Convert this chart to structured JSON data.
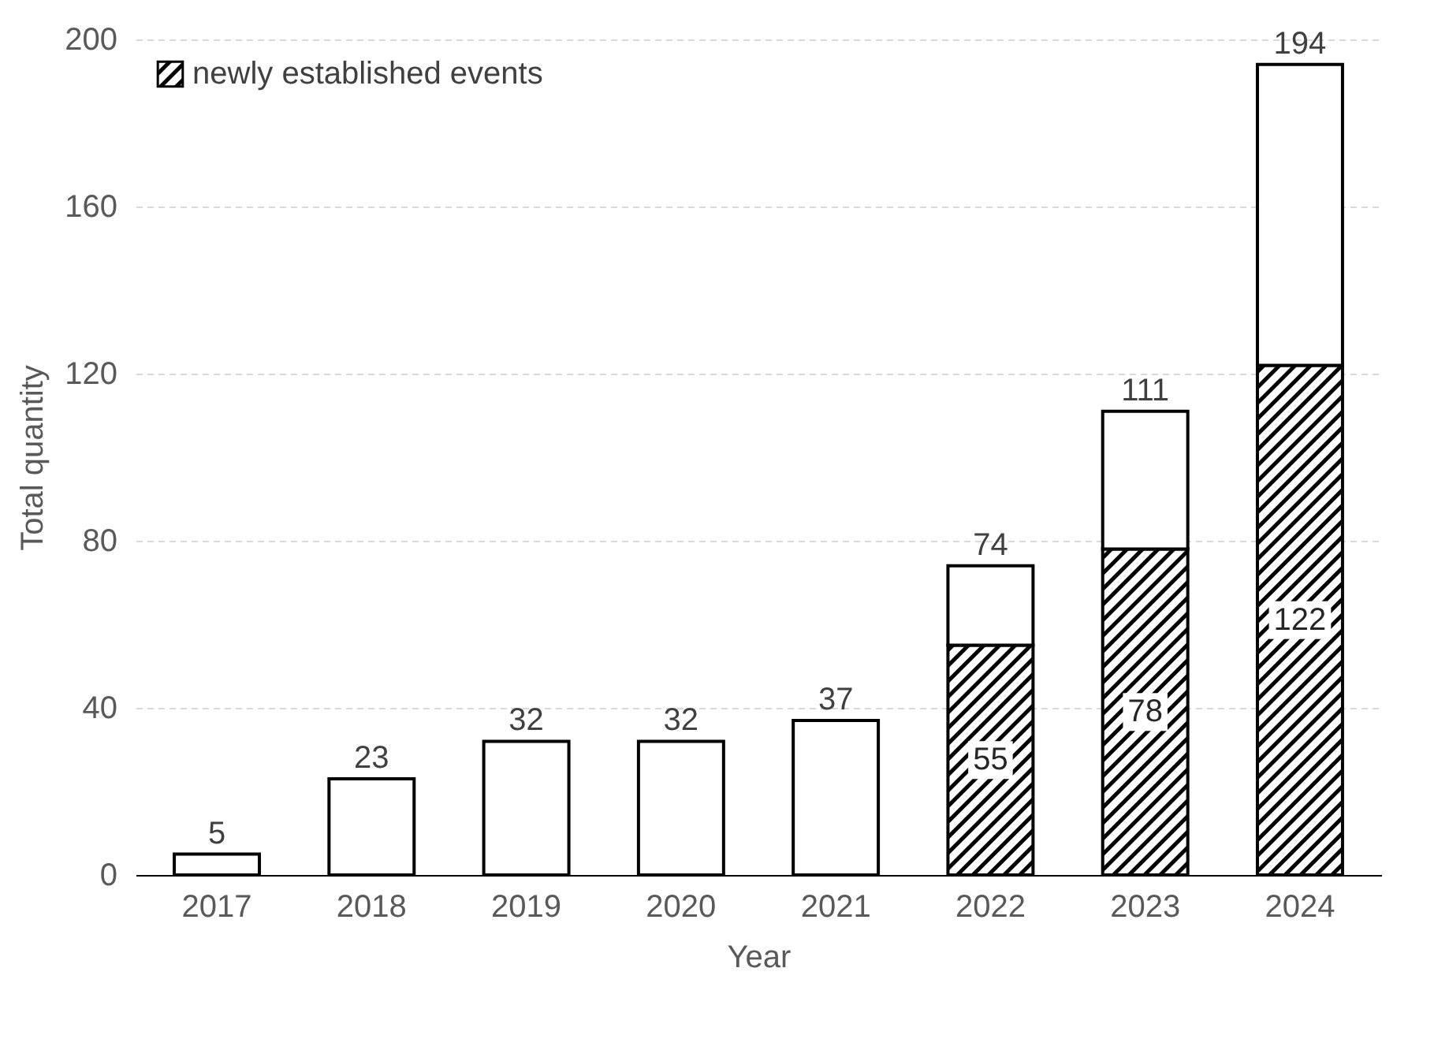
{
  "chart_data": {
    "type": "bar",
    "stacked": true,
    "xlabel": "Year",
    "ylabel": "Total quantity",
    "categories": [
      "2017",
      "2018",
      "2019",
      "2020",
      "2021",
      "2022",
      "2023",
      "2024"
    ],
    "series": [
      {
        "name": "newly established events",
        "color": "#000000",
        "values": [
          null,
          null,
          null,
          null,
          null,
          55,
          78,
          122
        ],
        "value_labels": [
          null,
          null,
          null,
          null,
          null,
          "55",
          "78",
          "122"
        ]
      },
      {
        "color": "#ffffff",
        "values": [
          5,
          23,
          32,
          32,
          37,
          19,
          33,
          72
        ]
      }
    ],
    "totals": [
      "5",
      "23",
      "32",
      "32",
      "37",
      "74",
      "111",
      "194"
    ],
    "ylim": [
      0,
      200
    ],
    "yticks": [
      0,
      40,
      80,
      120,
      160,
      200
    ],
    "grid": "y",
    "legend": "top left"
  }
}
